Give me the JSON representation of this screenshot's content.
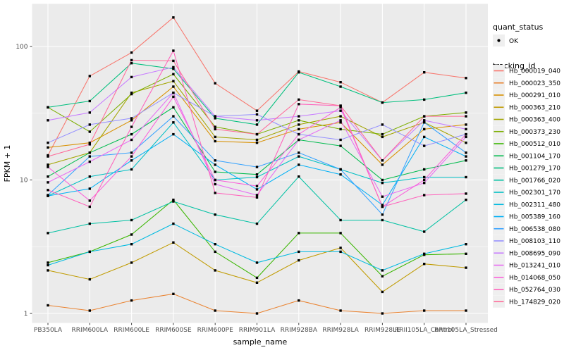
{
  "figure": {
    "background": "#FFFFFF",
    "panel_background": "#EBEBEB",
    "grid_color": "#FFFFFF",
    "tick_color": "#333333",
    "tick_label_color": "#4D4D4D",
    "marker_color": "#000000",
    "legend_key_background": "#EFEFEF"
  },
  "legend": {
    "quant_status_title": "quant_status",
    "quant_status_items": [
      {
        "label": "OK",
        "symbol": "point"
      }
    ],
    "tracking_id_title": "tracking_id"
  },
  "chart_data": {
    "type": "line",
    "title": "",
    "xlabel": "sample_name",
    "ylabel": "FPKM + 1",
    "y_scale": "log10",
    "y_ticks": [
      1,
      10,
      100
    ],
    "y_minor_ticks": [
      3.162,
      31.623
    ],
    "ylim": [
      0.93,
      210
    ],
    "grid": true,
    "legend_position": "right",
    "point_marker": "small black point on every vertex (quant_status OK)",
    "categories": [
      "PB350LA",
      "RRIM600LA",
      "RRIM600LE",
      "RRIM600SE",
      "RRIM600PE",
      "RRIM901LA",
      "RRIM928BA",
      "RRIM928LA",
      "RRIM928LE",
      "RRII105LA_Control",
      "RRII105LA_Stressed"
    ],
    "series": [
      {
        "name": "Hb_000019_040",
        "color": "#F8766D",
        "values": [
          15.3,
          60,
          90,
          165,
          53,
          33,
          65,
          54,
          38,
          64,
          58
        ]
      },
      {
        "name": "Hb_000023_350",
        "color": "#EA8331",
        "values": [
          1.15,
          1.05,
          1.25,
          1.4,
          1.05,
          1.0,
          1.25,
          1.05,
          1.0,
          1.05,
          1.05
        ]
      },
      {
        "name": "Hb_000291_010",
        "color": "#D89000",
        "values": [
          17.5,
          19,
          28,
          50,
          19.5,
          19,
          24,
          27,
          13,
          24,
          26
        ]
      },
      {
        "name": "Hb_000363_210",
        "color": "#C09B00",
        "values": [
          2.1,
          1.8,
          2.4,
          3.4,
          2.1,
          1.7,
          2.5,
          3.1,
          1.45,
          2.35,
          2.2
        ]
      },
      {
        "name": "Hb_000363_400",
        "color": "#A3A500",
        "values": [
          13,
          16,
          45,
          55,
          21,
          20,
          26,
          30,
          21,
          27,
          19
        ]
      },
      {
        "name": "Hb_000373_230",
        "color": "#7CAE00",
        "values": [
          35,
          23,
          44,
          62,
          25,
          22,
          28,
          24,
          22,
          30,
          32
        ]
      },
      {
        "name": "Hb_000512_010",
        "color": "#39B600",
        "values": [
          2.4,
          2.9,
          3.9,
          7.1,
          2.9,
          1.85,
          4.0,
          4.0,
          1.9,
          2.75,
          2.8
        ]
      },
      {
        "name": "Hb_001104_170",
        "color": "#00BB4E",
        "values": [
          10.6,
          16,
          22,
          35,
          11.5,
          11,
          20,
          18,
          10,
          12,
          14
        ]
      },
      {
        "name": "Hb_001279_170",
        "color": "#00BF7D",
        "values": [
          35,
          39,
          75,
          68,
          29,
          26,
          64,
          50,
          38,
          40,
          45
        ]
      },
      {
        "name": "Hb_001766_020",
        "color": "#00C1A3",
        "values": [
          4.0,
          4.7,
          5.0,
          6.9,
          5.5,
          4.7,
          10.6,
          5.0,
          5.0,
          4.1,
          7.1
        ]
      },
      {
        "name": "Hb_002301_170",
        "color": "#00BFC4",
        "values": [
          7.6,
          10.6,
          12,
          27,
          10,
          10.5,
          15,
          12,
          9.5,
          10.5,
          10.5
        ]
      },
      {
        "name": "Hb_002311_480",
        "color": "#00BAE0",
        "values": [
          2.3,
          2.9,
          3.3,
          4.7,
          3.3,
          2.4,
          2.9,
          2.9,
          2.1,
          2.8,
          3.3
        ]
      },
      {
        "name": "Hb_005389_160",
        "color": "#00B0F6",
        "values": [
          7.6,
          8.6,
          14,
          22,
          13,
          8.5,
          13,
          11,
          6.5,
          21,
          15
        ]
      },
      {
        "name": "Hb_006538_080",
        "color": "#35A2FF",
        "values": [
          7.7,
          15,
          16,
          30,
          14,
          12.5,
          16,
          12,
          5.5,
          27,
          16
        ]
      },
      {
        "name": "Hb_008103_110",
        "color": "#9590FF",
        "values": [
          19,
          26,
          29,
          45,
          30,
          31,
          22,
          20,
          26,
          18,
          22
        ]
      },
      {
        "name": "Hb_008695_090",
        "color": "#C77CFF",
        "values": [
          28,
          32,
          59,
          70,
          30,
          28,
          30,
          33,
          14,
          28,
          24
        ]
      },
      {
        "name": "Hb_013241_010",
        "color": "#E76BF3",
        "values": [
          9.6,
          13.7,
          20,
          45,
          9.3,
          7.7,
          20,
          28,
          7.5,
          9.5,
          21
        ]
      },
      {
        "name": "Hb_014068_050",
        "color": "#FA62DB",
        "values": [
          12.5,
          7.0,
          15,
          42,
          10,
          9.0,
          22,
          35,
          6.3,
          10,
          22
        ]
      },
      {
        "name": "Hb_052764_030",
        "color": "#FF62BC",
        "values": [
          8.4,
          6.3,
          25,
          93,
          8.0,
          7.4,
          37,
          36,
          6.3,
          7.7,
          7.9
        ]
      },
      {
        "name": "Hb_174829_020",
        "color": "#FF6A98",
        "values": [
          15,
          18.5,
          79,
          78,
          24,
          22,
          40,
          36,
          14,
          30,
          30
        ]
      }
    ]
  }
}
